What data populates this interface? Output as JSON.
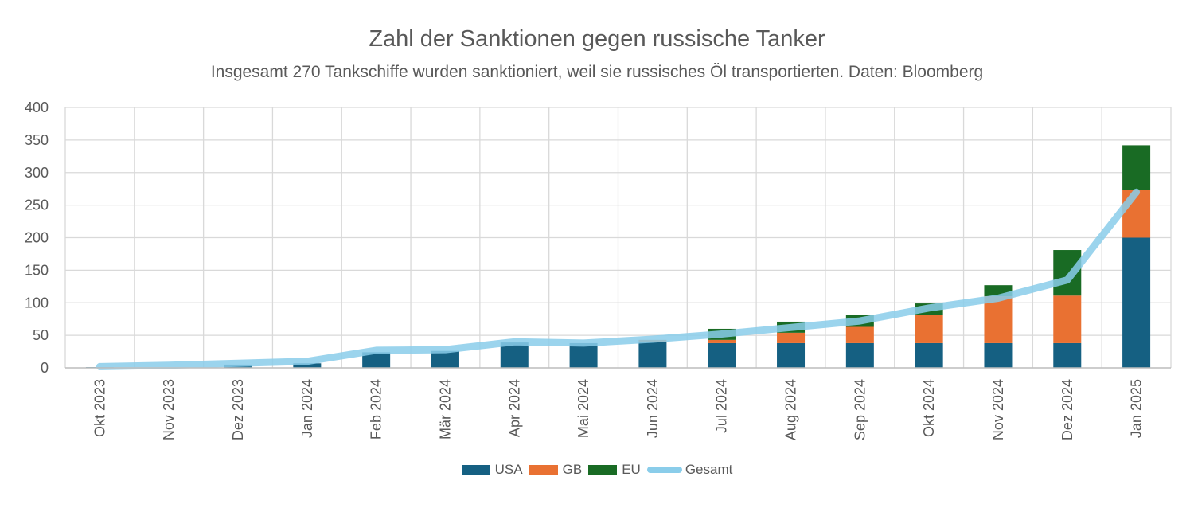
{
  "chart_data": {
    "type": "bar",
    "stacked": true,
    "title": "Zahl der Sanktionen gegen russische Tanker",
    "subtitle": "Insgesamt 270 Tankschiffe wurden sanktioniert, weil sie russisches Öl transportierten. Daten: Bloomberg",
    "categories": [
      "Okt 2023",
      "Nov 2023",
      "Dez 2023",
      "Jan 2024",
      "Feb 2024",
      "Mär 2024",
      "Apr 2024",
      "Mai 2024",
      "Jun 2024",
      "Jul 2024",
      "Aug 2024",
      "Sep 2024",
      "Okt 2024",
      "Nov 2024",
      "Dez 2024",
      "Jan 2025"
    ],
    "series": [
      {
        "name": "USA",
        "color": "#156082",
        "values": [
          1,
          0,
          5,
          7,
          24,
          26,
          39,
          38,
          40,
          38,
          38,
          38,
          38,
          38,
          38,
          200
        ]
      },
      {
        "name": "GB",
        "color": "#E97132",
        "values": [
          0,
          0,
          0,
          0,
          0,
          0,
          0,
          0,
          3,
          5,
          16,
          25,
          43,
          72,
          73,
          74
        ]
      },
      {
        "name": "EU",
        "color": "#196B24",
        "values": [
          0,
          0,
          0,
          0,
          0,
          0,
          0,
          0,
          0,
          17,
          17,
          18,
          18,
          17,
          70,
          68
        ]
      },
      {
        "name": "Gesamt",
        "color": "#8ACDEA",
        "type": "line",
        "values": [
          2,
          4,
          7,
          10,
          27,
          28,
          40,
          38,
          44,
          52,
          62,
          72,
          92,
          107,
          135,
          270
        ]
      }
    ],
    "ylim": [
      0,
      400
    ],
    "yticks": [
      0,
      50,
      100,
      150,
      200,
      250,
      300,
      350,
      400
    ],
    "grid": true,
    "legend_position": "bottom"
  }
}
